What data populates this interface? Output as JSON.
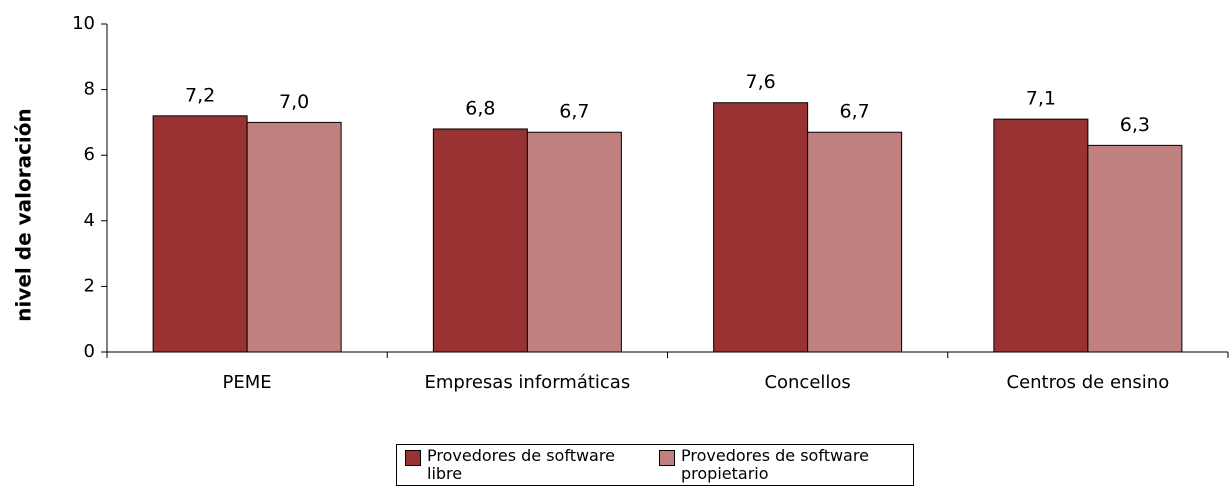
{
  "chart_data": {
    "type": "bar",
    "y_label": "nivel de valoración",
    "categories": [
      "PEME",
      "Empresas informáticas",
      "Concellos",
      "Centros de ensino"
    ],
    "series": [
      {
        "name": "Provedores de software libre",
        "color": "#993333",
        "values": [
          7.2,
          6.8,
          7.6,
          7.1
        ],
        "value_labels": [
          "7,2",
          "6,8",
          "7,6",
          "7,1"
        ]
      },
      {
        "name": "Provedores de software propietario",
        "color": "#c08080",
        "values": [
          7.0,
          6.7,
          6.7,
          6.3
        ],
        "value_labels": [
          "7,0",
          "6,7",
          "6,7",
          "6,3"
        ]
      }
    ],
    "ylim": [
      0,
      10
    ],
    "yticks": [
      0,
      2,
      4,
      6,
      8,
      10
    ],
    "grid": false,
    "legend": "bottom"
  }
}
